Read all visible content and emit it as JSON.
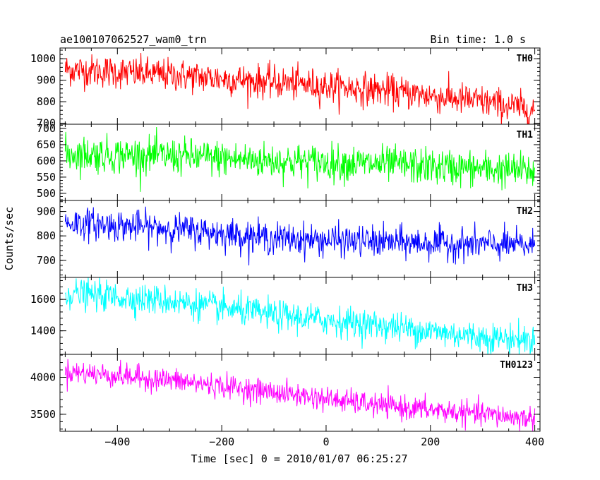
{
  "chart_data": {
    "type": "line",
    "title": "ae100107062527_wam0_trn",
    "bin_time_label": "Bin time: 1.0 s",
    "xlabel": "Time [sec] 0 = 2010/01/07 06:25:27",
    "ylabel": "Counts/sec",
    "xlim": [
      -510,
      410
    ],
    "x_ticks": [
      -400,
      -200,
      0,
      200,
      400
    ],
    "x_tick_labels": [
      "−400",
      "−200",
      "0",
      "200",
      "400"
    ],
    "x_range": [
      -500,
      400
    ],
    "panels": [
      {
        "name": "TH0",
        "color": "#ff0000",
        "ylim": [
          695,
          1050
        ],
        "y_ticks": [
          700,
          800,
          900,
          1000
        ],
        "y_tick_labels": [
          "700",
          "800",
          "900",
          "1000"
        ],
        "trend": [
          [
            -500,
            950
          ],
          [
            -300,
            925
          ],
          [
            -100,
            890
          ],
          [
            100,
            855
          ],
          [
            300,
            800
          ],
          [
            400,
            760
          ]
        ],
        "noise": 38
      },
      {
        "name": "TH1",
        "color": "#00ff00",
        "ylim": [
          478,
          713
        ],
        "y_ticks": [
          500,
          550,
          600,
          650,
          700
        ],
        "y_tick_labels": [
          "500",
          "550",
          "600",
          "650",
          "700"
        ],
        "trend": [
          [
            -500,
            622
          ],
          [
            -300,
            615
          ],
          [
            -100,
            600
          ],
          [
            100,
            590
          ],
          [
            300,
            575
          ],
          [
            400,
            568
          ]
        ],
        "noise": 28
      },
      {
        "name": "TH2",
        "color": "#0000ff",
        "ylim": [
          630,
          945
        ],
        "y_ticks": [
          700,
          800,
          900
        ],
        "y_tick_labels": [
          "700",
          "800",
          "900"
        ],
        "trend": [
          [
            -500,
            855
          ],
          [
            -300,
            830
          ],
          [
            -100,
            790
          ],
          [
            100,
            775
          ],
          [
            300,
            765
          ],
          [
            400,
            760
          ]
        ],
        "noise": 32
      },
      {
        "name": "TH3",
        "color": "#00ffff",
        "ylim": [
          1250,
          1740
        ],
        "y_ticks": [
          1400,
          1600
        ],
        "y_tick_labels": [
          "1400",
          "1600"
        ],
        "trend": [
          [
            -500,
            1640
          ],
          [
            -300,
            1590
          ],
          [
            -100,
            1500
          ],
          [
            100,
            1435
          ],
          [
            300,
            1360
          ],
          [
            400,
            1340
          ]
        ],
        "noise": 48
      },
      {
        "name": "TH0123",
        "color": "#ff00ff",
        "ylim": [
          3270,
          4310
        ],
        "y_ticks": [
          3500,
          4000
        ],
        "y_tick_labels": [
          "3500",
          "4000"
        ],
        "trend": [
          [
            -500,
            4080
          ],
          [
            -300,
            3960
          ],
          [
            -100,
            3800
          ],
          [
            100,
            3620
          ],
          [
            300,
            3500
          ],
          [
            400,
            3440
          ]
        ],
        "noise": 80
      }
    ]
  }
}
